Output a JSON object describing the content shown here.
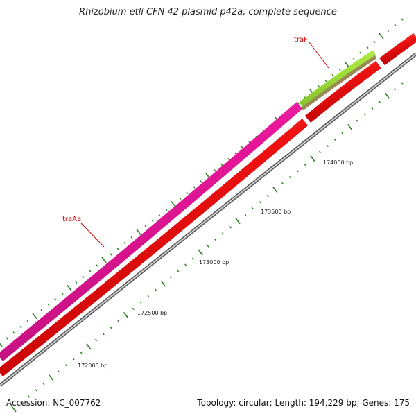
{
  "title": "Rhizobium etli CFN 42 plasmid p42a, complete sequence",
  "footer": {
    "accession": "Accession: NC_007762",
    "summary": "Topology: circular; Length: 194,229 bp; Genes: 175"
  },
  "genes": [
    {
      "name": "traAa",
      "color": "#e8179a"
    },
    {
      "name": "traF",
      "color": "#a3e33b"
    }
  ],
  "tick_labels": [
    "172000 bp",
    "172500 bp",
    "173000 bp",
    "173500 bp",
    "174000 bp"
  ],
  "colors": {
    "cds_red": "#ee1111",
    "backbone": "#888888",
    "tick_green": "#2a7d1e",
    "label_red": "#cc0000"
  }
}
